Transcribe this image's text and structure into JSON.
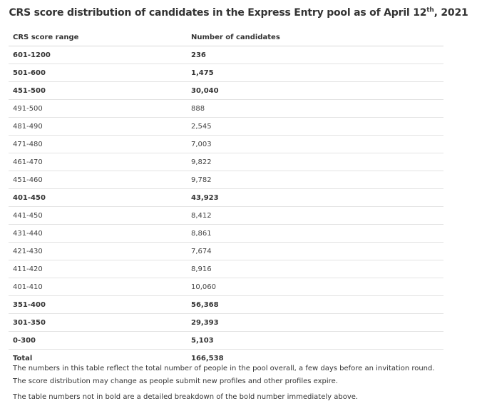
{
  "title": {
    "main": "CRS score distribution of candidates in the Express Entry pool as of April 12",
    "sup": "th",
    "tail": ", 2021"
  },
  "table": {
    "headers": [
      "CRS score range",
      "Number of candidates"
    ],
    "rows": [
      {
        "range": "601-1200",
        "count": "236",
        "bold": true
      },
      {
        "range": "501-600",
        "count": "1,475",
        "bold": true
      },
      {
        "range": "451-500",
        "count": "30,040",
        "bold": true
      },
      {
        "range": "491-500",
        "count": "888",
        "bold": false
      },
      {
        "range": "481-490",
        "count": "2,545",
        "bold": false
      },
      {
        "range": "471-480",
        "count": "7,003",
        "bold": false
      },
      {
        "range": "461-470",
        "count": "9,822",
        "bold": false
      },
      {
        "range": "451-460",
        "count": "9,782",
        "bold": false
      },
      {
        "range": "401-450",
        "count": "43,923",
        "bold": true
      },
      {
        "range": "441-450",
        "count": "8,412",
        "bold": false
      },
      {
        "range": "431-440",
        "count": "8,861",
        "bold": false
      },
      {
        "range": "421-430",
        "count": "7,674",
        "bold": false
      },
      {
        "range": "411-420",
        "count": "8,916",
        "bold": false
      },
      {
        "range": "401-410",
        "count": "10,060",
        "bold": false
      },
      {
        "range": "351-400",
        "count": "56,368",
        "bold": true
      },
      {
        "range": "301-350",
        "count": "29,393",
        "bold": true
      },
      {
        "range": "0-300",
        "count": "5,103",
        "bold": true
      }
    ],
    "total": {
      "label": "Total",
      "count": "166,538"
    }
  },
  "notes": [
    "The numbers in this table reflect the total number of people in the pool overall, a few days before an invitation round.",
    "The score distribution may change as people submit new profiles and other profiles expire.",
    "The table numbers not in bold are a detailed breakdown of the bold number immediately above."
  ]
}
